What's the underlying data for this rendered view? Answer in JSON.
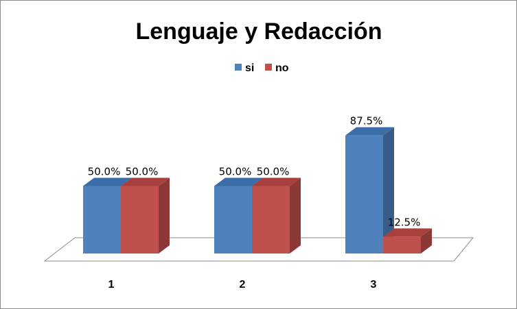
{
  "chart_data": {
    "type": "bar",
    "title": "Lenguaje y Redacción",
    "categories": [
      "1",
      "2",
      "3"
    ],
    "series": [
      {
        "name": "si",
        "values": [
          50.0,
          50.0,
          87.5
        ],
        "labels": [
          "50.0%",
          "50.0%",
          "87.5%"
        ]
      },
      {
        "name": "no",
        "values": [
          50.0,
          50.0,
          12.5
        ],
        "labels": [
          "50.0%",
          "50.0%",
          "12.5%"
        ]
      }
    ],
    "ylim": [
      0,
      100
    ],
    "grid": false,
    "legend_position": "top-center",
    "three_d": true
  },
  "colors": {
    "si": "#4F81BD",
    "no": "#C0504D"
  }
}
